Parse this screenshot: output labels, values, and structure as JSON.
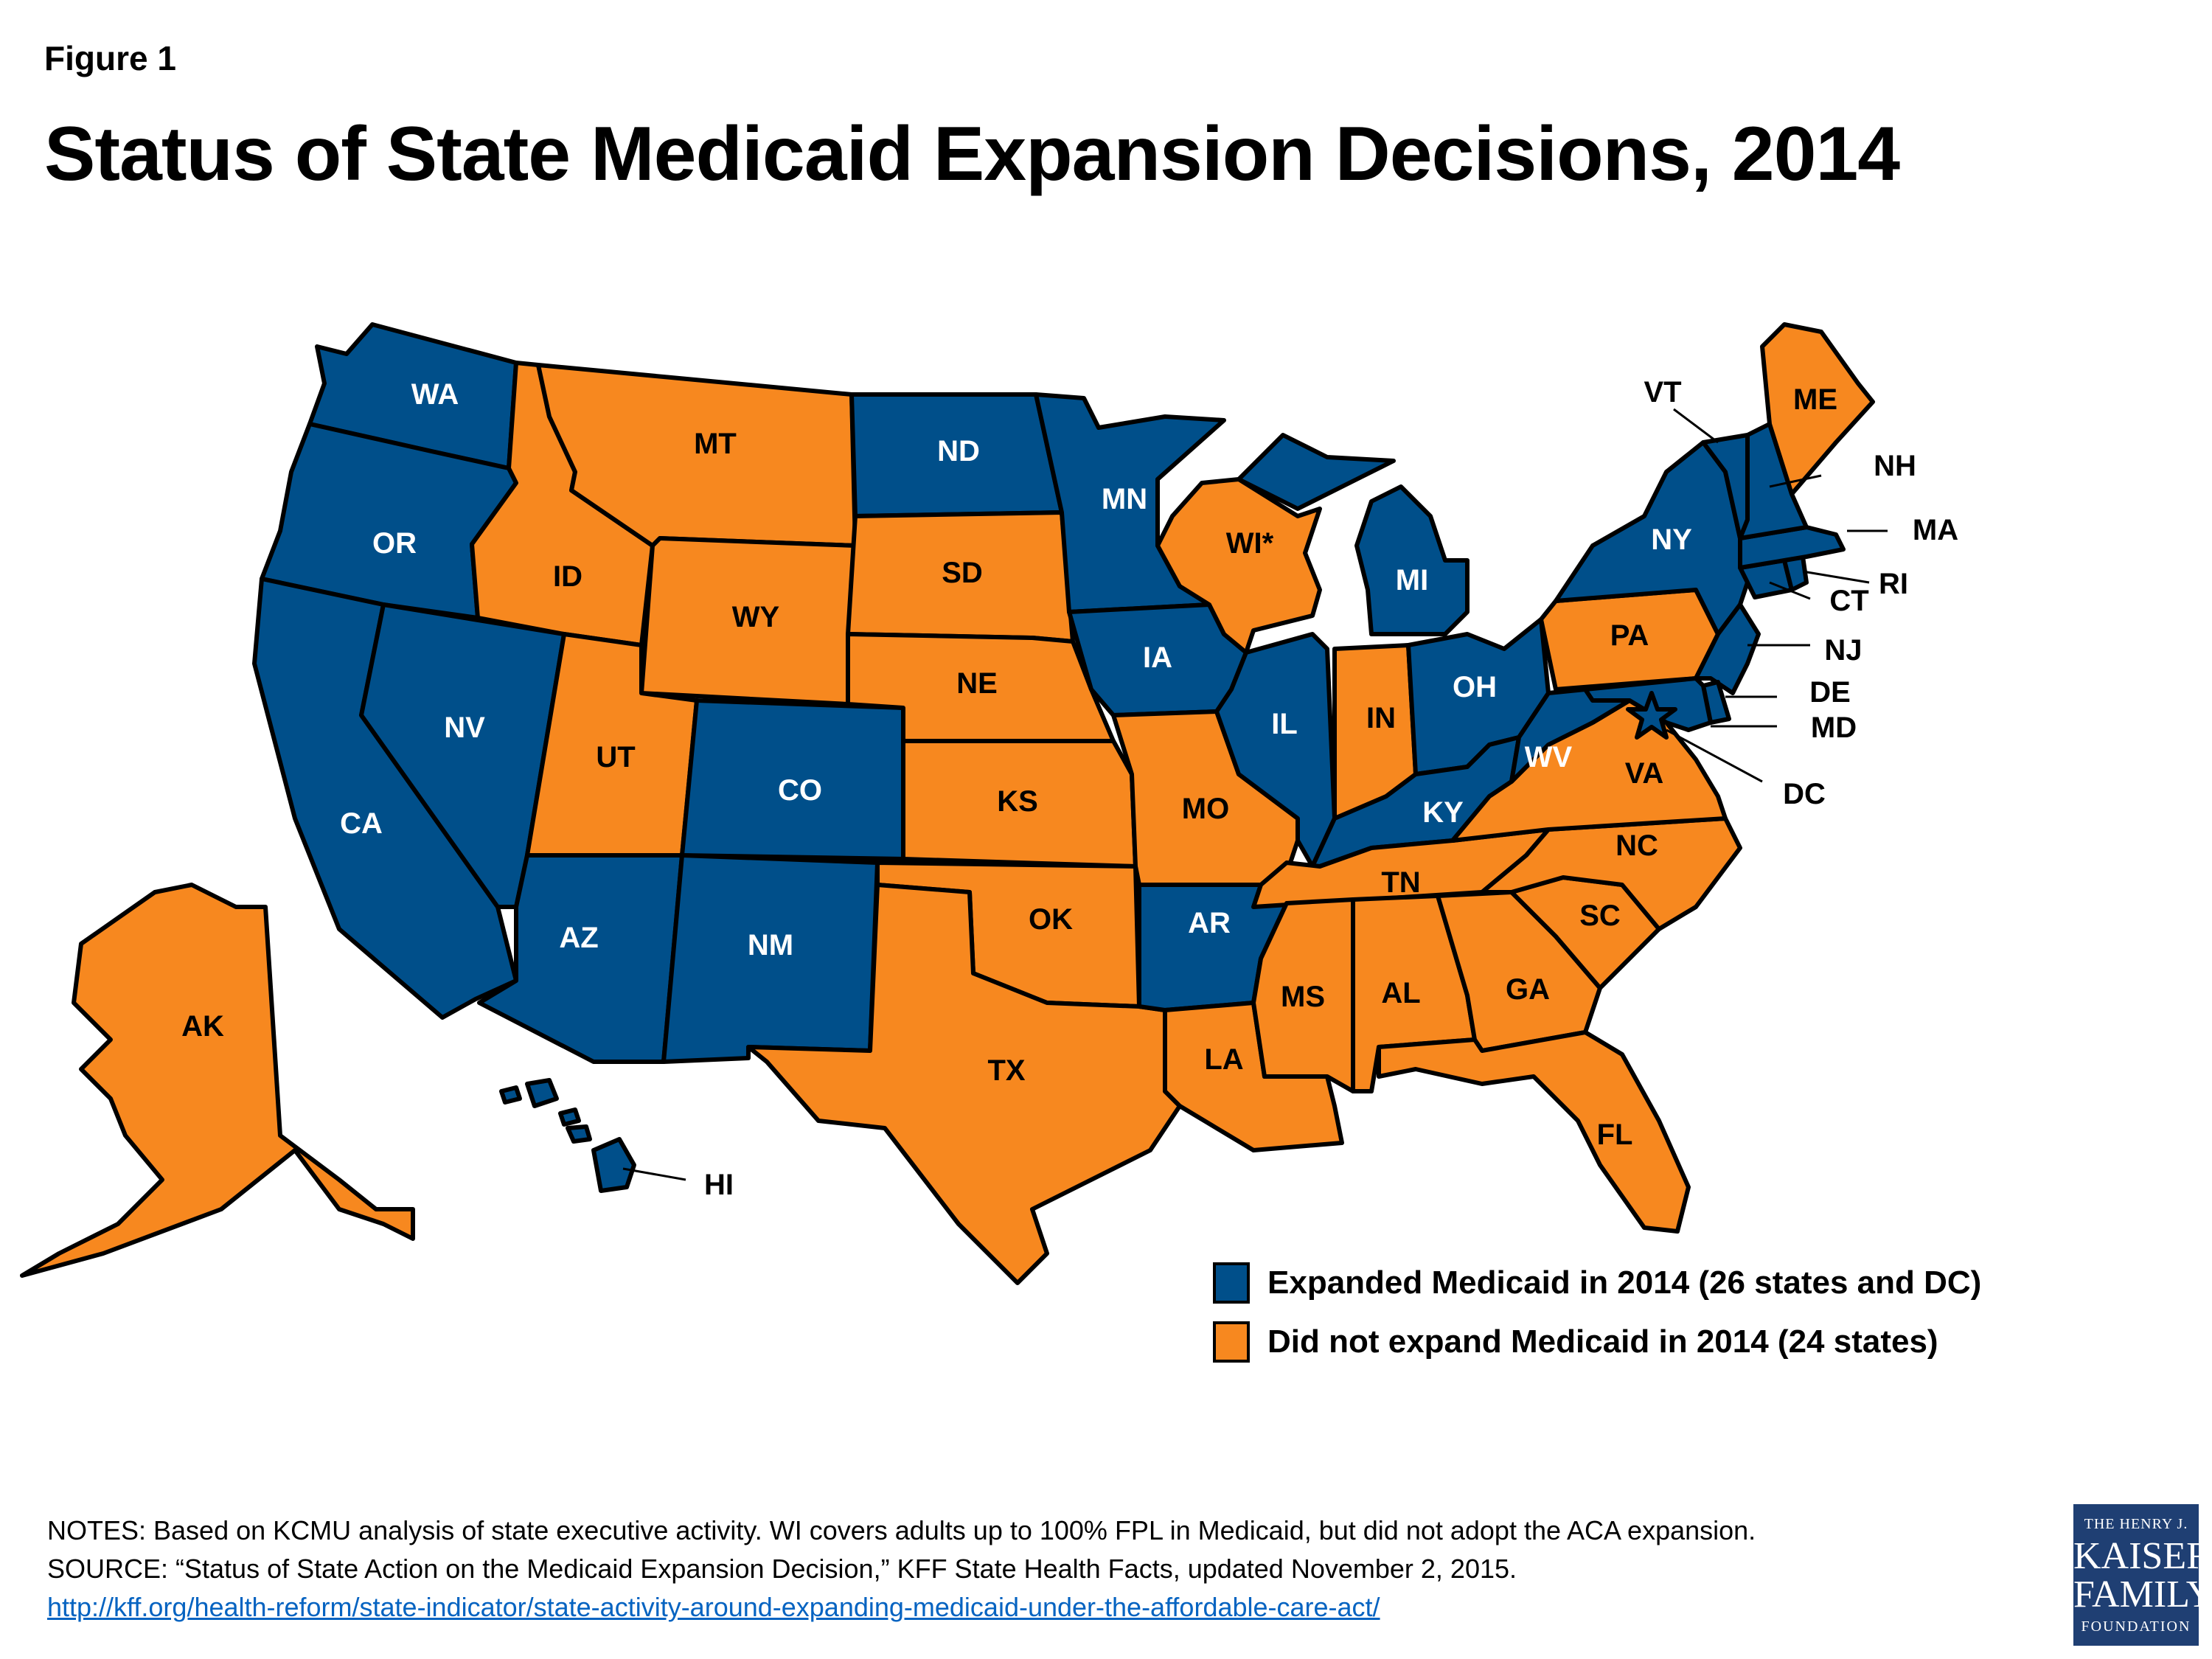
{
  "figure_label": "Figure 1",
  "title": "Status of State Medicaid Expansion Decisions, 2014",
  "colors": {
    "expanded": "#004f8a",
    "not_expanded": "#f7881f",
    "border": "#000000"
  },
  "legend": {
    "expanded": "Expanded Medicaid in 2014 (26 states and DC)",
    "not_expanded": "Did not expand Medicaid in 2014 (24 states)"
  },
  "states": {
    "WA": {
      "label": "WA",
      "status": "expanded"
    },
    "OR": {
      "label": "OR",
      "status": "expanded"
    },
    "CA": {
      "label": "CA",
      "status": "expanded"
    },
    "NV": {
      "label": "NV",
      "status": "expanded"
    },
    "ID": {
      "label": "ID",
      "status": "not_expanded"
    },
    "MT": {
      "label": "MT",
      "status": "not_expanded"
    },
    "WY": {
      "label": "WY",
      "status": "not_expanded"
    },
    "UT": {
      "label": "UT",
      "status": "not_expanded"
    },
    "AZ": {
      "label": "AZ",
      "status": "expanded"
    },
    "CO": {
      "label": "CO",
      "status": "expanded"
    },
    "NM": {
      "label": "NM",
      "status": "expanded"
    },
    "ND": {
      "label": "ND",
      "status": "expanded"
    },
    "SD": {
      "label": "SD",
      "status": "not_expanded"
    },
    "NE": {
      "label": "NE",
      "status": "not_expanded"
    },
    "KS": {
      "label": "KS",
      "status": "not_expanded"
    },
    "OK": {
      "label": "OK",
      "status": "not_expanded"
    },
    "TX": {
      "label": "TX",
      "status": "not_expanded"
    },
    "MN": {
      "label": "MN",
      "status": "expanded"
    },
    "IA": {
      "label": "IA",
      "status": "expanded"
    },
    "MO": {
      "label": "MO",
      "status": "not_expanded"
    },
    "AR": {
      "label": "AR",
      "status": "expanded"
    },
    "LA": {
      "label": "LA",
      "status": "not_expanded"
    },
    "WI": {
      "label": "WI*",
      "status": "not_expanded"
    },
    "IL": {
      "label": "IL",
      "status": "expanded"
    },
    "MI": {
      "label": "MI",
      "status": "expanded"
    },
    "IN": {
      "label": "IN",
      "status": "not_expanded"
    },
    "OH": {
      "label": "OH",
      "status": "expanded"
    },
    "KY": {
      "label": "KY",
      "status": "expanded"
    },
    "TN": {
      "label": "TN",
      "status": "not_expanded"
    },
    "MS": {
      "label": "MS",
      "status": "not_expanded"
    },
    "AL": {
      "label": "AL",
      "status": "not_expanded"
    },
    "GA": {
      "label": "GA",
      "status": "not_expanded"
    },
    "FL": {
      "label": "FL",
      "status": "not_expanded"
    },
    "SC": {
      "label": "SC",
      "status": "not_expanded"
    },
    "NC": {
      "label": "NC",
      "status": "not_expanded"
    },
    "VA": {
      "label": "VA",
      "status": "not_expanded"
    },
    "WV": {
      "label": "WV",
      "status": "expanded"
    },
    "PA": {
      "label": "PA",
      "status": "not_expanded"
    },
    "NY": {
      "label": "NY",
      "status": "expanded"
    },
    "NJ": {
      "label": "NJ",
      "status": "expanded"
    },
    "DE": {
      "label": "DE",
      "status": "expanded"
    },
    "MD": {
      "label": "MD",
      "status": "expanded"
    },
    "DC": {
      "label": "DC",
      "status": "expanded"
    },
    "CT": {
      "label": "CT",
      "status": "expanded"
    },
    "RI": {
      "label": "RI",
      "status": "expanded"
    },
    "MA": {
      "label": "MA",
      "status": "expanded"
    },
    "VT": {
      "label": "VT",
      "status": "expanded"
    },
    "NH": {
      "label": "NH",
      "status": "expanded"
    },
    "ME": {
      "label": "ME",
      "status": "not_expanded"
    },
    "AK": {
      "label": "AK",
      "status": "not_expanded"
    },
    "HI": {
      "label": "HI",
      "status": "expanded"
    }
  },
  "notes": {
    "line1": "NOTES: Based on KCMU analysis of state executive activity. WI covers adults up to 100% FPL in Medicaid, but did not adopt the ACA expansion.",
    "line2": "SOURCE: “Status of State Action on the Medicaid Expansion Decision,” KFF State Health Facts, updated November 2, 2015.",
    "link": "http://kff.org/health-reform/state-indicator/state-activity-around-expanding-medicaid-under-the-affordable-care-act/"
  },
  "logo": {
    "line1": "THE HENRY J.",
    "line2": "KAISER",
    "line3": "FAMILY",
    "line4": "FOUNDATION"
  }
}
